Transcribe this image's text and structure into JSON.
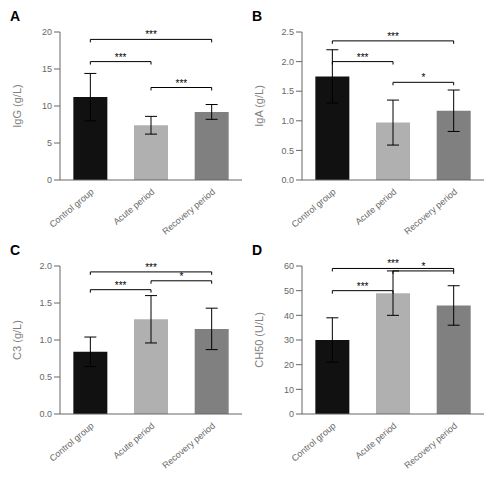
{
  "chart_data": [
    {
      "type": "bar",
      "title": "A",
      "ylabel": "IgG (g/L)",
      "categories": [
        "Control group",
        "Acute period",
        "Recovery period"
      ],
      "values": [
        11.2,
        7.4,
        9.2
      ],
      "errors": [
        3.2,
        1.2,
        1.0
      ],
      "colors": [
        "#111111",
        "#b0b0b0",
        "#808080"
      ],
      "ylim": [
        0,
        20
      ],
      "yticks": [
        0,
        5,
        10,
        15,
        20
      ],
      "annotations": [
        {
          "x1": "Control group",
          "x2": "Acute period",
          "y": 16.0,
          "label": "***"
        },
        {
          "x1": "Control group",
          "x2": "Recovery period",
          "y": 19.0,
          "label": "***"
        },
        {
          "x1": "Acute period",
          "x2": "Recovery period",
          "y": 12.5,
          "label": "***"
        }
      ]
    },
    {
      "type": "bar",
      "title": "B",
      "ylabel": "IgA (g/L)",
      "categories": [
        "Control group",
        "Acute period",
        "Recovery period"
      ],
      "values": [
        1.75,
        0.97,
        1.17
      ],
      "errors": [
        0.45,
        0.38,
        0.35
      ],
      "colors": [
        "#111111",
        "#b0b0b0",
        "#808080"
      ],
      "ylim": [
        0,
        2.5
      ],
      "yticks": [
        {
          "value": 0,
          "label": "0.0"
        },
        {
          "value": 0.5,
          "label": "0.5"
        },
        {
          "value": 1,
          "label": "1.0"
        },
        {
          "value": 1.5,
          "label": "1.5"
        },
        {
          "value": 2,
          "label": "2.0"
        },
        {
          "value": 2.5,
          "label": "2.5"
        }
      ],
      "annotations": [
        {
          "x1": "Control group",
          "x2": "Acute period",
          "y": 2.0,
          "label": "***"
        },
        {
          "x1": "Control group",
          "x2": "Recovery period",
          "y": 2.35,
          "label": "***"
        },
        {
          "x1": "Acute period",
          "x2": "Recovery period",
          "y": 1.65,
          "label": "*"
        }
      ]
    },
    {
      "type": "bar",
      "title": "C",
      "ylabel": "C3 (g/L)",
      "categories": [
        "Control group",
        "Acute period",
        "Recovery period"
      ],
      "values": [
        0.84,
        1.28,
        1.15
      ],
      "errors": [
        0.2,
        0.32,
        0.28
      ],
      "colors": [
        "#111111",
        "#b0b0b0",
        "#808080"
      ],
      "ylim": [
        0,
        2.0
      ],
      "yticks": [
        {
          "value": 0,
          "label": "0.0"
        },
        {
          "value": 0.5,
          "label": "0.5"
        },
        {
          "value": 1,
          "label": "1.0"
        },
        {
          "value": 1.5,
          "label": "1.5"
        },
        {
          "value": 2,
          "label": "2.0"
        }
      ],
      "annotations": [
        {
          "x1": "Control group",
          "x2": "Acute period",
          "y": 1.68,
          "label": "***"
        },
        {
          "x1": "Control group",
          "x2": "Recovery period",
          "y": 1.92,
          "label": "***"
        },
        {
          "x1": "Acute period",
          "x2": "Recovery period",
          "y": 1.8,
          "label": "*"
        }
      ]
    },
    {
      "type": "bar",
      "title": "D",
      "ylabel": "CH50 (U/L)",
      "categories": [
        "Control group",
        "Acute period",
        "Recovery period"
      ],
      "values": [
        30,
        49,
        44
      ],
      "errors": [
        9,
        9,
        8
      ],
      "colors": [
        "#111111",
        "#b0b0b0",
        "#808080"
      ],
      "ylim": [
        0,
        60
      ],
      "yticks": [
        0,
        10,
        20,
        30,
        40,
        50,
        60
      ],
      "annotations": [
        {
          "x1": "Control group",
          "x2": "Acute period",
          "y": 50,
          "label": "***"
        },
        {
          "x1": "Control group",
          "x2": "Recovery period",
          "y": 59,
          "label": "***"
        },
        {
          "x1": "Acute period",
          "x2": "Recovery period",
          "y": 58,
          "label": "*"
        }
      ]
    }
  ]
}
